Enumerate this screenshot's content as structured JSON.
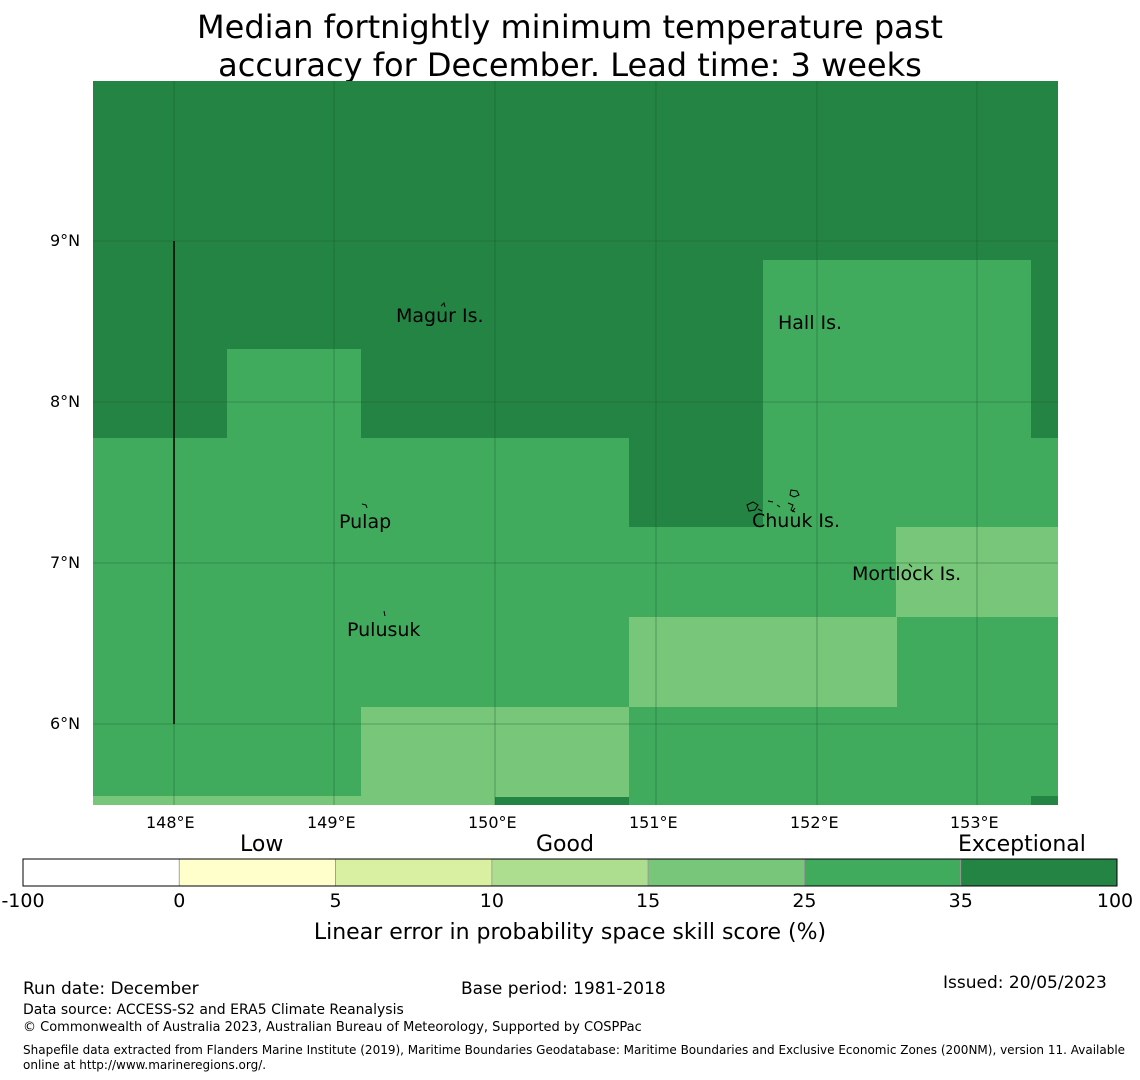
{
  "title": {
    "line1": "Median fortnightly minimum temperature past",
    "line2": "accuracy for December. Lead time: 3 weeks"
  },
  "map": {
    "lat_labels": [
      "9°N",
      "8°N",
      "7°N",
      "6°N"
    ],
    "lon_labels": [
      "148°E",
      "149°E",
      "150°E",
      "151°E",
      "152°E",
      "153°E"
    ],
    "places": [
      {
        "name": "Magur Is."
      },
      {
        "name": "Hall Is."
      },
      {
        "name": "Pulap"
      },
      {
        "name": "Chuuk Is."
      },
      {
        "name": "Mortlock Is."
      },
      {
        "name": "Pulusuk"
      }
    ]
  },
  "legend": {
    "categories": [
      "Low",
      "Good",
      "Exceptional"
    ],
    "ticks": [
      "-100",
      "0",
      "5",
      "10",
      "15",
      "25",
      "35",
      "100"
    ],
    "colors": [
      "#ffffff",
      "#ffffcc",
      "#d9f0a3",
      "#addd8e",
      "#78c679",
      "#41ab5d",
      "#238443"
    ],
    "label": "Linear error in probability space skill score (%)"
  },
  "footer": {
    "run_date": "Run date: December",
    "base_period": "Base period: 1981-2018",
    "issued": "Issued: 20/05/2023",
    "data_source": "Data source: ACCESS-S2 and ERA5 Climate Reanalysis",
    "copyright": "© Commonwealth of Australia 2023, Australian Bureau of Meteorology, Supported by COSPPac",
    "shapefile_line1": "Shapefile data extracted from Flanders Marine Institute (2019), Maritime Boundaries Geodatabase: Maritime Boundaries and Exclusive Economic Zones (200NM), version 11. Available",
    "shapefile_line2": "online at http://www.marineregions.org/."
  }
}
